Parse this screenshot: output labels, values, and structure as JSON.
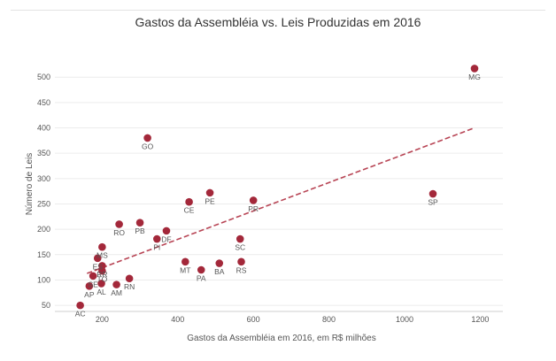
{
  "chart_data": {
    "type": "scatter",
    "title": "Gastos da Assembléia vs. Leis Produzidas em 2016",
    "xlabel": "Gastos da Assembléia em 2016, em R$ milhões",
    "ylabel": "Número de Leis",
    "xlim": [
      75,
      1260
    ],
    "ylim": [
      38,
      530
    ],
    "x_ticks": [
      "200",
      "400",
      "600",
      "800",
      "1000",
      "1200"
    ],
    "y_ticks": [
      "50",
      "100",
      "150",
      "200",
      "250",
      "300",
      "350",
      "400",
      "450",
      "500"
    ],
    "grid": "horizontal",
    "point_color": "#a3283a",
    "trendline": {
      "x": [
        160,
        1185
      ],
      "y": [
        113,
        400
      ],
      "color": "#b84555",
      "style": "dashed"
    },
    "points": [
      {
        "label": "MG",
        "x": 1185,
        "y": 517
      },
      {
        "label": "GO",
        "x": 320,
        "y": 380
      },
      {
        "label": "PE",
        "x": 485,
        "y": 272
      },
      {
        "label": "SP",
        "x": 1075,
        "y": 270
      },
      {
        "label": "PR",
        "x": 600,
        "y": 257
      },
      {
        "label": "CE",
        "x": 430,
        "y": 254
      },
      {
        "label": "PB",
        "x": 300,
        "y": 213
      },
      {
        "label": "RO",
        "x": 245,
        "y": 210
      },
      {
        "label": "DF",
        "x": 370,
        "y": 197
      },
      {
        "label": "PI",
        "x": 345,
        "y": 181
      },
      {
        "label": "SC",
        "x": 565,
        "y": 181
      },
      {
        "label": "MS",
        "x": 200,
        "y": 165
      },
      {
        "label": "ES",
        "x": 188,
        "y": 143
      },
      {
        "label": "MT",
        "x": 420,
        "y": 136
      },
      {
        "label": "RS",
        "x": 568,
        "y": 136
      },
      {
        "label": "BA",
        "x": 510,
        "y": 133
      },
      {
        "label": "RR",
        "x": 200,
        "y": 128
      },
      {
        "label": "PA",
        "x": 462,
        "y": 120
      },
      {
        "label": "TO",
        "x": 200,
        "y": 118
      },
      {
        "label": "SE",
        "x": 176,
        "y": 108
      },
      {
        "label": "RN",
        "x": 272,
        "y": 103
      },
      {
        "label": "AL",
        "x": 198,
        "y": 93
      },
      {
        "label": "AM",
        "x": 238,
        "y": 91
      },
      {
        "label": "AP",
        "x": 166,
        "y": 88
      },
      {
        "label": "AC",
        "x": 142,
        "y": 50
      }
    ]
  }
}
